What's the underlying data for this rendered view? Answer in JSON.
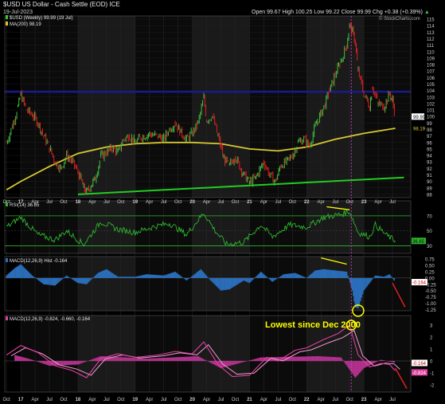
{
  "header": {
    "symbol": "$USD",
    "name": "US Dollar - Cash Settle (EOD)",
    "exchange": "ICE",
    "date": "19-Jul-2023",
    "open_label": "Open",
    "open": "99.67",
    "high_label": "High",
    "high": "100.25",
    "low_label": "Low",
    "low": "99.22",
    "close_label": "Close",
    "close": "99.99",
    "change": "Chg +0.38 (+0.39%)",
    "change_arrow": "▲",
    "watermark": "© StockCharts.com"
  },
  "colors": {
    "price_up": "#3fbf3f",
    "price_down": "#e02020",
    "ma": "#d8c832",
    "trendline": "#22cc22",
    "resistance": "#1a1aa8",
    "rsi": "#2db52d",
    "macd_hist": "#2a6db8",
    "macd_line": "#e040a0",
    "macd_signal": "#f0a0d0",
    "arrow": "#e02020",
    "annotation_text": "#ffff00",
    "marker_line": "#c040c0"
  },
  "chart_data": [
    {
      "type": "line",
      "panel": "price",
      "legend": [
        {
          "label": "$USD (Weekly) 99.99 (19 Jul)",
          "color": "#3fbf3f"
        },
        {
          "label": "MA(200) 98.19",
          "color": "#d8c832"
        }
      ],
      "x_labels": [
        "Oct",
        "17",
        "Apr",
        "Jul",
        "Oct",
        "18",
        "Apr",
        "Jul",
        "Oct",
        "19",
        "Apr",
        "Jul",
        "Oct",
        "20",
        "Apr",
        "Jul",
        "Oct",
        "21",
        "Apr",
        "Jul",
        "Oct",
        "22",
        "Apr",
        "Jul",
        "Oct",
        "23",
        "Apr",
        "Jul"
      ],
      "y_ticks": [
        88,
        89,
        90,
        91,
        92,
        93,
        94,
        95,
        96,
        97,
        98,
        99,
        100,
        101,
        102,
        103,
        104,
        105,
        106,
        107,
        108,
        109,
        110,
        111,
        112,
        113,
        114,
        115
      ],
      "ylim": [
        87.5,
        115.5
      ],
      "price_series": {
        "name": "$USD (Weekly)",
        "points": [
          [
            2016.75,
            96.0
          ],
          [
            2016.85,
            98.5
          ],
          [
            2016.95,
            101.5
          ],
          [
            2017.0,
            103.3
          ],
          [
            2017.1,
            101.0
          ],
          [
            2017.2,
            100.3
          ],
          [
            2017.3,
            99.0
          ],
          [
            2017.4,
            97.0
          ],
          [
            2017.5,
            95.2
          ],
          [
            2017.6,
            93.0
          ],
          [
            2017.7,
            92.0
          ],
          [
            2017.8,
            94.0
          ],
          [
            2017.9,
            93.0
          ],
          [
            2018.0,
            91.5
          ],
          [
            2018.1,
            89.0
          ],
          [
            2018.15,
            88.3
          ],
          [
            2018.3,
            90.5
          ],
          [
            2018.4,
            93.8
          ],
          [
            2018.5,
            94.5
          ],
          [
            2018.6,
            95.2
          ],
          [
            2018.7,
            94.5
          ],
          [
            2018.8,
            96.5
          ],
          [
            2018.9,
            97.0
          ],
          [
            2019.0,
            96.0
          ],
          [
            2019.1,
            96.8
          ],
          [
            2019.25,
            97.3
          ],
          [
            2019.4,
            97.0
          ],
          [
            2019.5,
            96.5
          ],
          [
            2019.6,
            98.0
          ],
          [
            2019.7,
            99.0
          ],
          [
            2019.8,
            97.5
          ],
          [
            2019.9,
            96.5
          ],
          [
            2020.0,
            97.5
          ],
          [
            2020.1,
            99.0
          ],
          [
            2020.2,
            102.8
          ],
          [
            2020.25,
            99.5
          ],
          [
            2020.35,
            100.0
          ],
          [
            2020.45,
            97.0
          ],
          [
            2020.55,
            93.5
          ],
          [
            2020.65,
            92.5
          ],
          [
            2020.75,
            93.8
          ],
          [
            2020.9,
            91.0
          ],
          [
            2021.0,
            89.9
          ],
          [
            2021.1,
            90.5
          ],
          [
            2021.25,
            93.0
          ],
          [
            2021.35,
            91.0
          ],
          [
            2021.45,
            90.0
          ],
          [
            2021.55,
            92.5
          ],
          [
            2021.65,
            93.0
          ],
          [
            2021.75,
            94.0
          ],
          [
            2021.85,
            96.0
          ],
          [
            2021.95,
            96.5
          ],
          [
            2022.05,
            95.5
          ],
          [
            2022.15,
            98.5
          ],
          [
            2022.3,
            101.5
          ],
          [
            2022.4,
            104.0
          ],
          [
            2022.5,
            106.5
          ],
          [
            2022.6,
            108.5
          ],
          [
            2022.7,
            111.0
          ],
          [
            2022.75,
            114.0
          ],
          [
            2022.8,
            113.0
          ],
          [
            2022.85,
            111.5
          ],
          [
            2022.9,
            107.0
          ],
          [
            2023.0,
            103.5
          ],
          [
            2023.1,
            101.5
          ],
          [
            2023.15,
            104.5
          ],
          [
            2023.25,
            102.0
          ],
          [
            2023.35,
            101.5
          ],
          [
            2023.45,
            103.5
          ],
          [
            2023.5,
            102.5
          ],
          [
            2023.55,
            99.99
          ]
        ]
      },
      "ma_series": {
        "name": "MA(200)",
        "points": [
          [
            2016.75,
            88.7
          ],
          [
            2017.0,
            90.0
          ],
          [
            2017.5,
            92.3
          ],
          [
            2018.0,
            94.3
          ],
          [
            2018.5,
            95.3
          ],
          [
            2019.0,
            95.8
          ],
          [
            2019.5,
            96.0
          ],
          [
            2020.0,
            96.0
          ],
          [
            2020.5,
            95.8
          ],
          [
            2021.0,
            95.0
          ],
          [
            2021.5,
            94.7
          ],
          [
            2022.0,
            95.3
          ],
          [
            2022.5,
            96.5
          ],
          [
            2023.0,
            97.4
          ],
          [
            2023.55,
            98.19
          ]
        ]
      },
      "trendline": {
        "from": [
          2018.0,
          88.0
        ],
        "to": [
          2023.7,
          90.6
        ]
      },
      "horizontal_line": 103.8,
      "current_values": [
        99.99,
        98.19
      ]
    },
    {
      "type": "line",
      "panel": "rsi",
      "legend": [
        {
          "label": "RSI(14) 36.65",
          "color": "#2db52d"
        }
      ],
      "ylim": [
        20,
        90
      ],
      "y_ticks": [
        70,
        50,
        30
      ],
      "levels": [
        70,
        30
      ],
      "current_value": 36.65,
      "points": [
        [
          2016.75,
          55
        ],
        [
          2017.0,
          68
        ],
        [
          2017.3,
          45
        ],
        [
          2017.6,
          38
        ],
        [
          2017.8,
          50
        ],
        [
          2018.1,
          32
        ],
        [
          2018.4,
          62
        ],
        [
          2018.7,
          52
        ],
        [
          2019.0,
          48
        ],
        [
          2019.3,
          55
        ],
        [
          2019.6,
          60
        ],
        [
          2019.9,
          45
        ],
        [
          2020.2,
          74
        ],
        [
          2020.4,
          50
        ],
        [
          2020.6,
          32
        ],
        [
          2020.9,
          35
        ],
        [
          2021.2,
          58
        ],
        [
          2021.4,
          42
        ],
        [
          2021.7,
          58
        ],
        [
          2022.0,
          55
        ],
        [
          2022.3,
          68
        ],
        [
          2022.6,
          72
        ],
        [
          2022.75,
          76
        ],
        [
          2022.9,
          48
        ],
        [
          2023.1,
          42
        ],
        [
          2023.2,
          58
        ],
        [
          2023.4,
          44
        ],
        [
          2023.55,
          36.65
        ]
      ]
    },
    {
      "type": "bar",
      "panel": "macd_histogram",
      "legend": [
        {
          "label": "MACD(12,26,9) Hist -0.164",
          "color": "#2a6db8"
        }
      ],
      "ylim": [
        -1.3,
        0.85
      ],
      "y_ticks": [
        0.75,
        0.5,
        0.25,
        0.0,
        -0.25,
        -0.5,
        -0.75,
        -1.0,
        -1.25
      ],
      "current_value": -0.164,
      "points": [
        [
          2016.75,
          0.1
        ],
        [
          2016.9,
          0.4
        ],
        [
          2017.0,
          0.55
        ],
        [
          2017.2,
          0.1
        ],
        [
          2017.4,
          -0.25
        ],
        [
          2017.6,
          -0.3
        ],
        [
          2017.8,
          0.1
        ],
        [
          2018.0,
          -0.2
        ],
        [
          2018.15,
          -0.25
        ],
        [
          2018.35,
          0.2
        ],
        [
          2018.5,
          0.35
        ],
        [
          2018.7,
          0.05
        ],
        [
          2019.0,
          0.05
        ],
        [
          2019.2,
          0.15
        ],
        [
          2019.5,
          0.1
        ],
        [
          2019.7,
          0.25
        ],
        [
          2019.9,
          -0.1
        ],
        [
          2020.15,
          0.35
        ],
        [
          2020.3,
          -0.05
        ],
        [
          2020.5,
          -0.5
        ],
        [
          2020.65,
          -0.45
        ],
        [
          2020.9,
          -0.1
        ],
        [
          2021.0,
          -0.2
        ],
        [
          2021.2,
          0.25
        ],
        [
          2021.4,
          -0.15
        ],
        [
          2021.6,
          0.15
        ],
        [
          2021.8,
          0.2
        ],
        [
          2022.0,
          0.0
        ],
        [
          2022.15,
          0.3
        ],
        [
          2022.3,
          0.35
        ],
        [
          2022.5,
          0.3
        ],
        [
          2022.7,
          0.25
        ],
        [
          2022.8,
          -0.5
        ],
        [
          2022.85,
          -1.15
        ],
        [
          2022.9,
          -1.2
        ],
        [
          2023.0,
          -0.5
        ],
        [
          2023.1,
          -0.2
        ],
        [
          2023.2,
          0.1
        ],
        [
          2023.35,
          0.05
        ],
        [
          2023.45,
          0.15
        ],
        [
          2023.55,
          -0.164
        ]
      ]
    },
    {
      "type": "line",
      "panel": "macd",
      "legend": [
        {
          "label": "MACD(12,26,9) -0.824, -0.660, -0.164",
          "color": "#e040a0"
        }
      ],
      "ylim": [
        -2.6,
        3.8
      ],
      "y_ticks": [
        3,
        2,
        1,
        0,
        -1,
        -2
      ],
      "current_values": [
        -0.164,
        -0.824
      ],
      "macd_points": [
        [
          2016.75,
          0.5
        ],
        [
          2017.0,
          1.3
        ],
        [
          2017.3,
          0.7
        ],
        [
          2017.6,
          -0.4
        ],
        [
          2017.9,
          -0.8
        ],
        [
          2018.15,
          -1.4
        ],
        [
          2018.4,
          0.2
        ],
        [
          2018.7,
          0.6
        ],
        [
          2019.0,
          0.3
        ],
        [
          2019.4,
          0.5
        ],
        [
          2019.7,
          0.8
        ],
        [
          2020.0,
          0.6
        ],
        [
          2020.2,
          1.6
        ],
        [
          2020.45,
          -0.3
        ],
        [
          2020.7,
          -1.3
        ],
        [
          2021.0,
          -1.2
        ],
        [
          2021.3,
          0.3
        ],
        [
          2021.5,
          0.0
        ],
        [
          2021.8,
          0.9
        ],
        [
          2022.0,
          1.1
        ],
        [
          2022.3,
          1.8
        ],
        [
          2022.55,
          2.3
        ],
        [
          2022.75,
          3.0
        ],
        [
          2022.9,
          0.5
        ],
        [
          2023.1,
          -0.5
        ],
        [
          2023.3,
          -0.2
        ],
        [
          2023.45,
          -0.3
        ],
        [
          2023.55,
          -0.824
        ]
      ],
      "hist_points": [
        [
          2016.9,
          0.5
        ],
        [
          2017.2,
          0.1
        ],
        [
          2017.5,
          -0.4
        ],
        [
          2018.0,
          -0.3
        ],
        [
          2018.4,
          0.4
        ],
        [
          2019.2,
          0.2
        ],
        [
          2020.1,
          0.4
        ],
        [
          2020.5,
          -0.6
        ],
        [
          2021.2,
          0.3
        ],
        [
          2022.2,
          0.4
        ],
        [
          2022.6,
          0.3
        ],
        [
          2022.85,
          -1.4
        ],
        [
          2023.0,
          -0.6
        ],
        [
          2023.3,
          0.1
        ],
        [
          2023.55,
          -0.164
        ]
      ]
    }
  ],
  "annotations": {
    "callout": "Lowest since Dec 2000"
  }
}
